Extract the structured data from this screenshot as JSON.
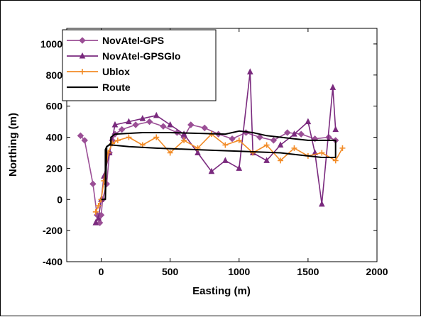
{
  "chart_data": {
    "type": "line",
    "title": "",
    "xlabel": "Easting (m)",
    "ylabel": "Northing (m)",
    "xlim": [
      -250,
      2000
    ],
    "ylim": [
      -400,
      1100
    ],
    "xticks": [
      "0",
      "500",
      "1000",
      "1500",
      "2000"
    ],
    "yticks": [
      "-400",
      "-200",
      "0",
      "200",
      "400",
      "600",
      "800",
      "1000"
    ],
    "xtick_values": [
      0,
      500,
      1000,
      1500,
      2000
    ],
    "ytick_values": [
      -400,
      -200,
      0,
      200,
      400,
      600,
      800,
      1000
    ],
    "grid": false,
    "legend_position": "top-left",
    "series": [
      {
        "name": "NovAtel-GPS",
        "color": "#9b4f96",
        "marker": "diamond",
        "x": [
          -150,
          -120,
          -60,
          -30,
          -10,
          0,
          10,
          40,
          60,
          80,
          100,
          150,
          250,
          350,
          450,
          550,
          600,
          650,
          750,
          850,
          950,
          1050,
          1150,
          1250,
          1350,
          1450,
          1550,
          1650,
          1700
        ],
        "y": [
          410,
          380,
          100,
          -100,
          -150,
          -100,
          0,
          100,
          300,
          380,
          420,
          450,
          480,
          500,
          470,
          430,
          400,
          480,
          460,
          420,
          390,
          430,
          400,
          380,
          430,
          420,
          390,
          400,
          380
        ]
      },
      {
        "name": "NovAtel-GPSGlo",
        "color": "#7a2a7e",
        "marker": "triangle",
        "x": [
          -40,
          -20,
          0,
          20,
          60,
          100,
          200,
          300,
          400,
          500,
          600,
          700,
          800,
          900,
          1000,
          1080,
          1100,
          1200,
          1300,
          1400,
          1500,
          1550,
          1600,
          1680,
          1700
        ],
        "y": [
          -150,
          -120,
          0,
          150,
          300,
          480,
          500,
          520,
          540,
          480,
          420,
          300,
          180,
          250,
          200,
          820,
          300,
          250,
          350,
          420,
          500,
          300,
          -30,
          720,
          450
        ]
      },
      {
        "name": "Ublox",
        "color": "#f28c28",
        "marker": "plus",
        "x": [
          -40,
          -20,
          0,
          20,
          50,
          80,
          120,
          200,
          300,
          400,
          500,
          600,
          700,
          800,
          900,
          1000,
          1100,
          1200,
          1300,
          1400,
          1500,
          1600,
          1700,
          1750
        ],
        "y": [
          -80,
          -40,
          0,
          120,
          300,
          360,
          380,
          400,
          350,
          400,
          300,
          380,
          330,
          420,
          350,
          380,
          300,
          350,
          250,
          330,
          280,
          300,
          250,
          330
        ]
      },
      {
        "name": "Route",
        "color": "#000000",
        "marker": "none",
        "x": [
          0,
          30,
          30,
          40,
          70,
          70,
          100,
          300,
          500,
          700,
          900,
          1000,
          1100,
          1200,
          1300,
          1400,
          1500,
          1600,
          1700,
          1700,
          1600,
          1400,
          1300,
          1000,
          700,
          400,
          200,
          80,
          60,
          40,
          30
        ],
        "y": [
          0,
          0,
          320,
          340,
          360,
          400,
          420,
          430,
          430,
          425,
          420,
          440,
          430,
          410,
          400,
          390,
          380,
          380,
          380,
          270,
          270,
          290,
          300,
          310,
          320,
          330,
          340,
          350,
          350,
          340,
          0
        ]
      }
    ]
  }
}
